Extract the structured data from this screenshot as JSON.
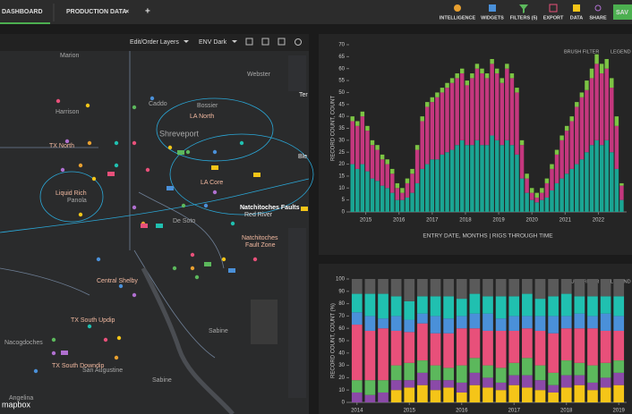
{
  "header": {
    "tabs": [
      "DASHBOARD",
      "PRODUCTION DATA"
    ],
    "close": "×",
    "add": "+",
    "tools": [
      "INTELLIGENCE",
      "WIDGETS",
      "FILTERS (5)",
      "EXPORT",
      "DATA",
      "SHARE"
    ],
    "save": "SAV"
  },
  "map": {
    "layers": "Edit/Order Layers",
    "style": "ENV Dark",
    "attribution": "mapbox",
    "labels": [
      "Marion",
      "Webster",
      "Bossier",
      "Harrison",
      "Caddo",
      "LA North",
      "Shreveport",
      "TX North",
      "Liquid Rich",
      "Panola",
      "LA Core",
      "De Soto",
      "Natchitoches Faults",
      "Red River",
      "Natchitoches",
      "Fault Zone",
      "Central Shelby",
      "TX South Updip",
      "Nacogdoches",
      "Sabine",
      "TX South Downdip",
      "San Augustine",
      "Sabine",
      "Angelina",
      "Ter",
      "Ble"
    ]
  },
  "chart_data": [
    {
      "type": "bar",
      "stacked": true,
      "controls": [
        "BRUSH FILTER",
        "LEGEND"
      ],
      "y_label": "RECORD COUNT, COUNT",
      "x_label": "ENTRY DATE, MONTHS | RIGS THROUGH TIME",
      "x": [
        2014.6,
        2014.75,
        2014.9,
        2015.05,
        2015.2,
        2015.35,
        2015.5,
        2015.65,
        2015.8,
        2015.95,
        2016.1,
        2016.25,
        2016.4,
        2016.55,
        2016.7,
        2016.85,
        2017,
        2017.15,
        2017.3,
        2017.45,
        2017.6,
        2017.75,
        2017.9,
        2018.05,
        2018.2,
        2018.35,
        2018.5,
        2018.65,
        2018.8,
        2018.95,
        2019.1,
        2019.25,
        2019.4,
        2019.55,
        2019.7,
        2019.85,
        2020,
        2020.15,
        2020.3,
        2020.45,
        2020.6,
        2020.75,
        2020.9,
        2021.05,
        2021.2,
        2021.35,
        2021.5,
        2021.65,
        2021.8,
        2021.95,
        2022.1,
        2022.25,
        2022.4,
        2022.55,
        2022.7
      ],
      "xlim": [
        2014.5,
        2022.85
      ],
      "xticks": [
        2015,
        2016,
        2017,
        2018,
        2019,
        2020,
        2021,
        2022
      ],
      "ylim": [
        0,
        70
      ],
      "yticks": [
        0,
        5,
        10,
        15,
        20,
        25,
        30,
        35,
        40,
        45,
        50,
        55,
        60,
        65,
        70
      ],
      "grid": false,
      "series": [
        {
          "color": "#1aa593",
          "values": [
            20,
            18,
            20,
            17,
            14,
            13,
            11,
            10,
            8,
            5,
            5,
            6,
            8,
            12,
            18,
            20,
            22,
            22,
            24,
            25,
            26,
            28,
            30,
            28,
            28,
            30,
            28,
            28,
            32,
            30,
            28,
            30,
            28,
            24,
            14,
            8,
            5,
            4,
            5,
            6,
            9,
            12,
            14,
            16,
            18,
            20,
            22,
            25,
            28,
            30,
            28,
            30,
            25,
            18,
            5
          ]
        },
        {
          "color": "#c4377e",
          "values": [
            18,
            18,
            20,
            17,
            14,
            13,
            11,
            10,
            8,
            5,
            3,
            6,
            8,
            14,
            20,
            24,
            24,
            26,
            26,
            27,
            28,
            28,
            28,
            25,
            28,
            30,
            30,
            28,
            30,
            28,
            26,
            30,
            28,
            26,
            14,
            6,
            3,
            2,
            3,
            6,
            9,
            12,
            16,
            18,
            20,
            24,
            26,
            26,
            28,
            32,
            30,
            30,
            27,
            18,
            6
          ]
        },
        {
          "color": "#7cc444",
          "values": [
            2,
            2,
            2,
            2,
            2,
            2,
            2,
            2,
            2,
            2,
            2,
            2,
            2,
            2,
            2,
            2,
            2,
            2,
            2,
            2,
            2,
            2,
            2,
            2,
            2,
            2,
            2,
            2,
            2,
            2,
            2,
            2,
            2,
            2,
            2,
            2,
            2,
            2,
            2,
            2,
            2,
            2,
            2,
            2,
            2,
            2,
            2,
            4,
            4,
            4,
            4,
            4,
            4,
            4,
            1
          ]
        }
      ]
    },
    {
      "type": "bar",
      "stacked": true,
      "controls": [
        "BRUSH FILTER",
        "LEGEND"
      ],
      "y_label": "RECORD COUNT, COUNT (%)",
      "x": [
        2014,
        2014.25,
        2014.5,
        2014.75,
        2015,
        2015.25,
        2015.5,
        2015.75,
        2016,
        2016.25,
        2016.5,
        2016.75,
        2017,
        2017.25,
        2017.5,
        2017.75,
        2018,
        2018.25,
        2018.5,
        2018.75,
        2019
      ],
      "xlim": [
        2013.85,
        2019.15
      ],
      "xticks": [
        2014,
        2015,
        2016,
        2017,
        2018,
        2019
      ],
      "ylim": [
        0,
        100
      ],
      "yticks": [
        0,
        10,
        20,
        30,
        40,
        50,
        60,
        70,
        80,
        90,
        100
      ],
      "grid": false,
      "series": [
        {
          "color": "#f5c518",
          "values": [
            0,
            0,
            0,
            10,
            12,
            14,
            10,
            12,
            8,
            14,
            12,
            10,
            14,
            12,
            10,
            8,
            12,
            14,
            10,
            12,
            14
          ]
        },
        {
          "color": "#8b4aa8",
          "values": [
            8,
            6,
            8,
            8,
            6,
            10,
            8,
            6,
            8,
            10,
            8,
            6,
            8,
            10,
            8,
            6,
            10,
            8,
            6,
            8,
            10
          ]
        },
        {
          "color": "#5cb85c",
          "values": [
            10,
            12,
            10,
            12,
            14,
            10,
            12,
            10,
            14,
            12,
            10,
            12,
            10,
            14,
            12,
            10,
            12,
            10,
            14,
            12,
            10
          ]
        },
        {
          "color": "#e8507a",
          "values": [
            45,
            40,
            42,
            28,
            25,
            30,
            26,
            28,
            30,
            24,
            28,
            30,
            26,
            24,
            28,
            32,
            26,
            28,
            30,
            26,
            24
          ]
        },
        {
          "color": "#4a90d9",
          "values": [
            10,
            12,
            8,
            12,
            10,
            8,
            14,
            12,
            10,
            12,
            14,
            10,
            12,
            10,
            12,
            14,
            10,
            12,
            10,
            14,
            12
          ]
        },
        {
          "color": "#20c0b0",
          "values": [
            15,
            18,
            20,
            16,
            15,
            14,
            16,
            18,
            14,
            16,
            14,
            18,
            16,
            18,
            14,
            16,
            18,
            14,
            16,
            14,
            16
          ]
        },
        {
          "color": "#5a5a5a",
          "values": [
            12,
            12,
            12,
            14,
            18,
            14,
            14,
            14,
            16,
            12,
            14,
            14,
            14,
            12,
            16,
            14,
            12,
            14,
            14,
            14,
            14
          ]
        }
      ]
    }
  ]
}
